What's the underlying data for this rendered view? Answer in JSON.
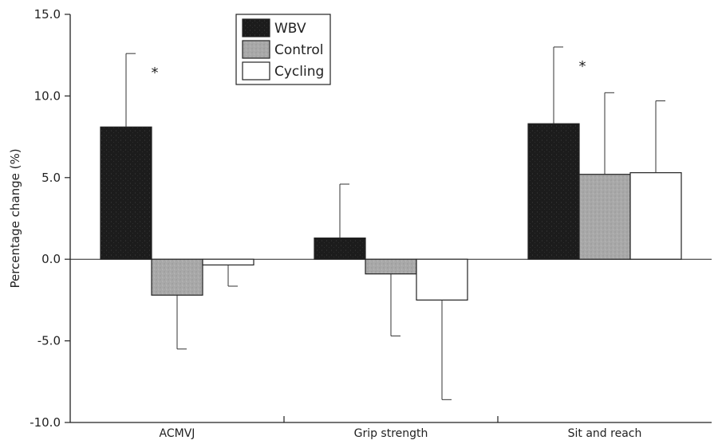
{
  "chart_data": {
    "type": "bar",
    "title": "",
    "xlabel": "",
    "ylabel": "Percentage change (%)",
    "ylim": [
      -10,
      15
    ],
    "yticks": [
      "-10.0",
      "-5.0",
      "0.0",
      "5.0",
      "10.0",
      "15.0"
    ],
    "categories": [
      "ACMVJ",
      "Grip strength",
      "Sit and reach"
    ],
    "series": [
      {
        "name": "WBV",
        "color": "#1c1c1c",
        "values": [
          8.1,
          1.3,
          8.3
        ],
        "errors": [
          4.5,
          3.3,
          4.7
        ]
      },
      {
        "name": "Control",
        "color": "#a6a6a6",
        "values": [
          -2.2,
          -0.9,
          5.2
        ],
        "errors": [
          3.3,
          3.8,
          5.0
        ]
      },
      {
        "name": "Cycling",
        "color": "#ffffff",
        "values": [
          -0.35,
          -2.5,
          5.3
        ],
        "errors": [
          1.3,
          6.1,
          4.4
        ]
      }
    ],
    "significance": [
      {
        "category": "ACMVJ",
        "label": "*"
      },
      {
        "category": "Sit and reach",
        "label": "*"
      }
    ],
    "legend": "top-left",
    "grid": false
  }
}
